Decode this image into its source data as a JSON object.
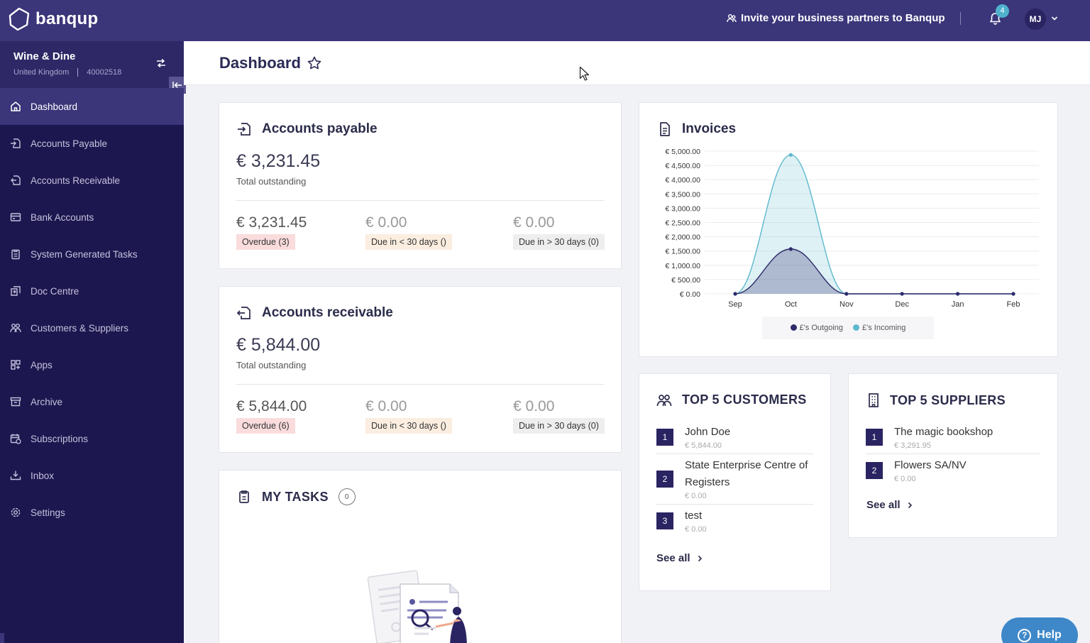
{
  "app": {
    "name": "banqup"
  },
  "topbar": {
    "invite_label": "Invite your business partners to Banqup",
    "notifications_count": "4",
    "user_initials": "MJ"
  },
  "company": {
    "name": "Wine & Dine",
    "country": "United Kingdom",
    "id": "40002518"
  },
  "nav": {
    "items": [
      {
        "label": "Dashboard",
        "icon": "home-icon"
      },
      {
        "label": "Accounts Payable",
        "icon": "payable-icon"
      },
      {
        "label": "Accounts Receivable",
        "icon": "receivable-icon"
      },
      {
        "label": "Bank Accounts",
        "icon": "bank-card-icon"
      },
      {
        "label": "System Generated Tasks",
        "icon": "clipboard-icon"
      },
      {
        "label": "Doc Centre",
        "icon": "doc-centre-icon"
      },
      {
        "label": "Customers & Suppliers",
        "icon": "people-icon"
      },
      {
        "label": "Apps",
        "icon": "apps-grid-icon"
      },
      {
        "label": "Archive",
        "icon": "archive-icon"
      },
      {
        "label": "Subscriptions",
        "icon": "subscriptions-icon"
      },
      {
        "label": "Inbox",
        "icon": "inbox-icon"
      },
      {
        "label": "Settings",
        "icon": "gear-icon"
      }
    ]
  },
  "page": {
    "title": "Dashboard"
  },
  "payable": {
    "title": "Accounts payable",
    "total": "€ 3,231.45",
    "total_label": "Total outstanding",
    "overdue_amount": "€ 3,231.45",
    "overdue_label": "Overdue (3)",
    "due_lt30_amount": "€ 0.00",
    "due_lt30_label": "Due in < 30 days ()",
    "due_gt30_amount": "€ 0.00",
    "due_gt30_label": "Due in > 30 days (0)"
  },
  "receivable": {
    "title": "Accounts receivable",
    "total": "€ 5,844.00",
    "total_label": "Total outstanding",
    "overdue_amount": "€ 5,844.00",
    "overdue_label": "Overdue (6)",
    "due_lt30_amount": "€ 0.00",
    "due_lt30_label": "Due in < 30 days ()",
    "due_gt30_amount": "€ 0.00",
    "due_gt30_label": "Due in > 30 days (0)"
  },
  "tasks": {
    "title": "MY TASKS",
    "count": "0"
  },
  "invoices": {
    "title": "Invoices"
  },
  "chart_data": {
    "type": "area",
    "x": [
      "Sep",
      "Oct",
      "Nov",
      "Dec",
      "Jan",
      "Feb"
    ],
    "ylim": [
      0,
      5000
    ],
    "yticks": [
      "€ 5,000.00",
      "€ 4,500.00",
      "€ 4,000.00",
      "€ 3,500.00",
      "€ 3,000.00",
      "€ 2,500.00",
      "€ 2,000.00",
      "€ 1,500.00",
      "€ 1,000.00",
      "€ 500.00",
      "€ 0.00"
    ],
    "grid": true,
    "legend_position": "bottom",
    "series": [
      {
        "name": "£'s Outgoing",
        "color": "#2e2a6b",
        "values": [
          0,
          1570,
          0,
          0,
          0,
          0
        ]
      },
      {
        "name": "£'s Incoming",
        "color": "#5cb8cc",
        "values": [
          0,
          4870,
          0,
          0,
          0,
          0
        ]
      }
    ]
  },
  "top_customers": {
    "title": "TOP 5 CUSTOMERS",
    "see_all": "See all",
    "items": [
      {
        "rank": "1",
        "name": "John Doe",
        "amount": "€ 5,844.00"
      },
      {
        "rank": "2",
        "name": "State Enterprise Centre of Registers",
        "amount": "€ 0.00"
      },
      {
        "rank": "3",
        "name": "test",
        "amount": "€ 0.00"
      }
    ]
  },
  "top_suppliers": {
    "title": "TOP 5 SUPPLIERS",
    "see_all": "See all",
    "items": [
      {
        "rank": "1",
        "name": "The magic bookshop",
        "amount": "€ 3,291.95"
      },
      {
        "rank": "2",
        "name": "Flowers SA/NV",
        "amount": "€ 0.00"
      }
    ]
  },
  "help": {
    "label": "Help"
  }
}
